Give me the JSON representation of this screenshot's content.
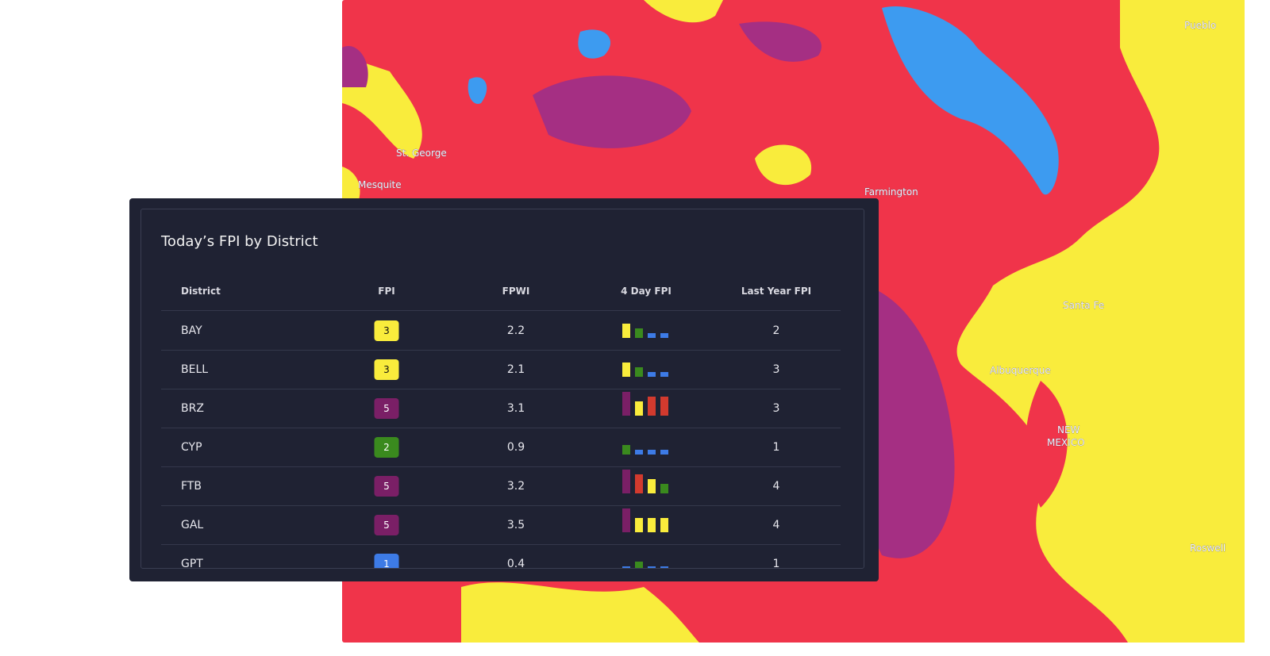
{
  "map": {
    "labels": [
      "St. George",
      "Mesquite",
      "Farmington",
      "Santa Fe",
      "Albuquerque",
      "NEW",
      "MEXICO",
      "Pueblo",
      "Roswell"
    ]
  },
  "panel": {
    "title": "Today’s FPI by District",
    "headers": [
      "District",
      "FPI",
      "FPWI",
      "4 Day FPI",
      "Last Year FPI"
    ],
    "level_colors": [
      "#3d7be6",
      "#3a8a1e",
      "#f9ec3c",
      "#d23a2e",
      "#7a1f66"
    ],
    "rows": [
      {
        "district": "BAY",
        "fpi": 3,
        "fpwi": 2.2,
        "four_day": [
          3,
          2,
          1,
          1
        ],
        "last_year": 2
      },
      {
        "district": "BELL",
        "fpi": 3,
        "fpwi": 2.1,
        "four_day": [
          3,
          2,
          1,
          1
        ],
        "last_year": 3
      },
      {
        "district": "BRZ",
        "fpi": 5,
        "fpwi": 3.1,
        "four_day": [
          5,
          3,
          4,
          4
        ],
        "last_year": 3
      },
      {
        "district": "CYP",
        "fpi": 2,
        "fpwi": 0.9,
        "four_day": [
          2,
          1,
          1,
          1
        ],
        "last_year": 1
      },
      {
        "district": "FTB",
        "fpi": 5,
        "fpwi": 3.2,
        "four_day": [
          5,
          4,
          3,
          2
        ],
        "last_year": 4
      },
      {
        "district": "GAL",
        "fpi": 5,
        "fpwi": 3.5,
        "four_day": [
          5,
          3,
          3,
          3
        ],
        "last_year": 4
      },
      {
        "district": "GPT",
        "fpi": 1,
        "fpwi": 0.4,
        "four_day": [
          1,
          2,
          1,
          1
        ],
        "last_year": 1
      }
    ]
  }
}
